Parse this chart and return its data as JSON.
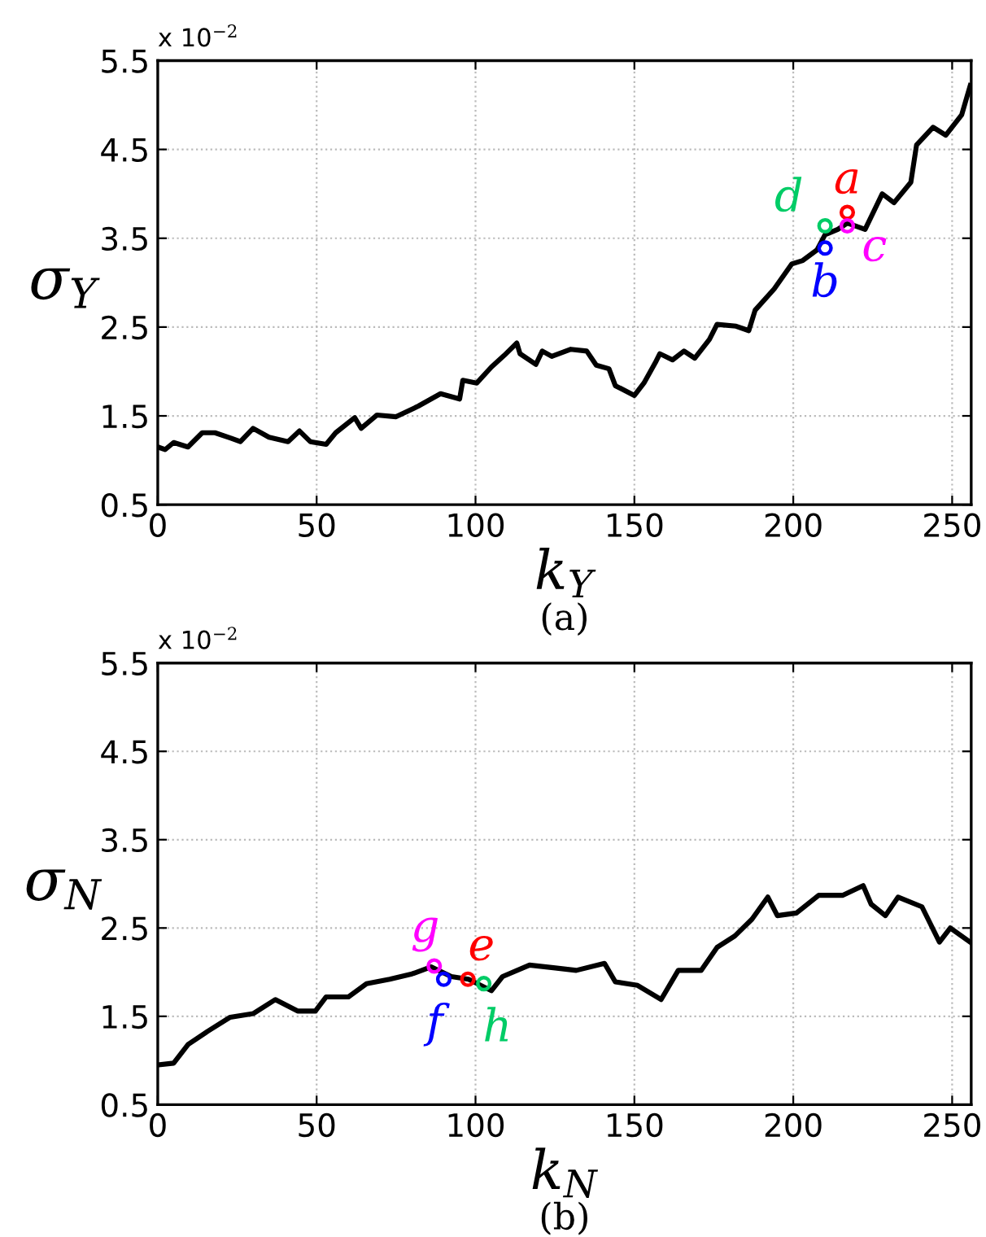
{
  "chart_data": [
    {
      "type": "line",
      "xlabel": "k$_{Y}$",
      "ylabel": "σ$_{Y}$",
      "annotations": [
        "x 10$^{−2}$",
        "(a)"
      ],
      "xlim": [
        0,
        256
      ],
      "ylim": [
        0.5,
        5.5
      ],
      "xticks": [
        0,
        50,
        100,
        150,
        200,
        250
      ],
      "yticks": [
        0.5,
        1.5,
        2.5,
        3.5,
        4.5,
        5.5
      ],
      "grid": true,
      "legend": false,
      "series": [
        {
          "color": "#000000",
          "marker": "none",
          "x": [
            0,
            2.3,
            5,
            9.5,
            14,
            18,
            23,
            26,
            30,
            35,
            41,
            44.6,
            48,
            53,
            56,
            62,
            64,
            69,
            75,
            82,
            89,
            95,
            96,
            100.4,
            105,
            109,
            113,
            114,
            119,
            121,
            124,
            130,
            135,
            138,
            142,
            144,
            150,
            153,
            156.6,
            158,
            162,
            165.6,
            169,
            173.6,
            176,
            182,
            186,
            188,
            194,
            199.5,
            203,
            207.5,
            210,
            214,
            217,
            222.6,
            228,
            231.7,
            237,
            238.8,
            244,
            248,
            253,
            255.7
          ],
          "values": [
            1.15,
            1.12,
            1.2,
            1.15,
            1.31,
            1.31,
            1.25,
            1.21,
            1.36,
            1.26,
            1.21,
            1.33,
            1.21,
            1.18,
            1.31,
            1.48,
            1.36,
            1.51,
            1.49,
            1.61,
            1.75,
            1.69,
            1.9,
            1.87,
            2.05,
            2.18,
            2.32,
            2.2,
            2.08,
            2.23,
            2.17,
            2.25,
            2.23,
            2.07,
            2.03,
            1.84,
            1.73,
            1.87,
            2.1,
            2.2,
            2.13,
            2.23,
            2.15,
            2.36,
            2.53,
            2.51,
            2.46,
            2.69,
            2.93,
            3.21,
            3.25,
            3.37,
            3.54,
            3.6,
            3.67,
            3.6,
            4.0,
            3.9,
            4.13,
            4.55,
            4.75,
            4.66,
            4.89,
            5.22
          ]
        },
        {
          "type": "scatter",
          "name": "a",
          "color": "#ff0000",
          "marker": "circle",
          "x": [
            217
          ],
          "values": [
            3.79
          ]
        },
        {
          "type": "scatter",
          "name": "b",
          "color": "#0000ff",
          "marker": "circle",
          "x": [
            210
          ],
          "values": [
            3.39
          ]
        },
        {
          "type": "scatter",
          "name": "c",
          "color": "#ff00ff",
          "marker": "circle",
          "x": [
            217
          ],
          "values": [
            3.64
          ]
        },
        {
          "type": "scatter",
          "name": "d",
          "color": "#00cc66",
          "marker": "circle",
          "x": [
            210
          ],
          "values": [
            3.64
          ]
        }
      ]
    },
    {
      "type": "line",
      "xlabel": "k$_{N}$",
      "ylabel": "σ$_{N}$",
      "annotations": [
        "x 10$^{−2}$",
        "(b)"
      ],
      "xlim": [
        0,
        256
      ],
      "ylim": [
        0.5,
        5.5
      ],
      "xticks": [
        0,
        50,
        100,
        150,
        200,
        250
      ],
      "yticks": [
        0.5,
        1.5,
        2.5,
        3.5,
        4.5,
        5.5
      ],
      "grid": true,
      "legend": false,
      "series": [
        {
          "color": "#000000",
          "marker": "none",
          "x": [
            0,
            5,
            9.5,
            15.7,
            22.8,
            30,
            37,
            44,
            49.6,
            53,
            60,
            65.7,
            73,
            80,
            86,
            92.4,
            97.8,
            105,
            108.5,
            117,
            124.5,
            131.7,
            140.6,
            144,
            151,
            158.4,
            163.8,
            171,
            176,
            181.6,
            187,
            192,
            195,
            201,
            208,
            215.5,
            222,
            224.5,
            229,
            233,
            240.5,
            246,
            249.4,
            255.7
          ],
          "values": [
            0.95,
            0.97,
            1.18,
            1.33,
            1.49,
            1.53,
            1.69,
            1.56,
            1.56,
            1.72,
            1.72,
            1.87,
            1.92,
            1.98,
            2.06,
            1.95,
            1.92,
            1.79,
            1.95,
            2.08,
            2.05,
            2.02,
            2.1,
            1.89,
            1.85,
            1.69,
            2.02,
            2.02,
            2.28,
            2.41,
            2.6,
            2.85,
            2.64,
            2.67,
            2.87,
            2.87,
            2.98,
            2.77,
            2.64,
            2.85,
            2.74,
            2.34,
            2.5,
            2.34
          ]
        },
        {
          "type": "scatter",
          "name": "e",
          "color": "#ff0000",
          "marker": "circle",
          "x": [
            97.6
          ],
          "values": [
            1.92
          ]
        },
        {
          "type": "scatter",
          "name": "f",
          "color": "#0000ff",
          "marker": "circle",
          "x": [
            90
          ],
          "values": [
            1.92
          ]
        },
        {
          "type": "scatter",
          "name": "g",
          "color": "#ff00ff",
          "marker": "circle",
          "x": [
            87
          ],
          "values": [
            2.07
          ]
        },
        {
          "type": "scatter",
          "name": "h",
          "color": "#00cc66",
          "marker": "circle",
          "x": [
            102.6
          ],
          "values": [
            1.87
          ]
        }
      ]
    }
  ]
}
